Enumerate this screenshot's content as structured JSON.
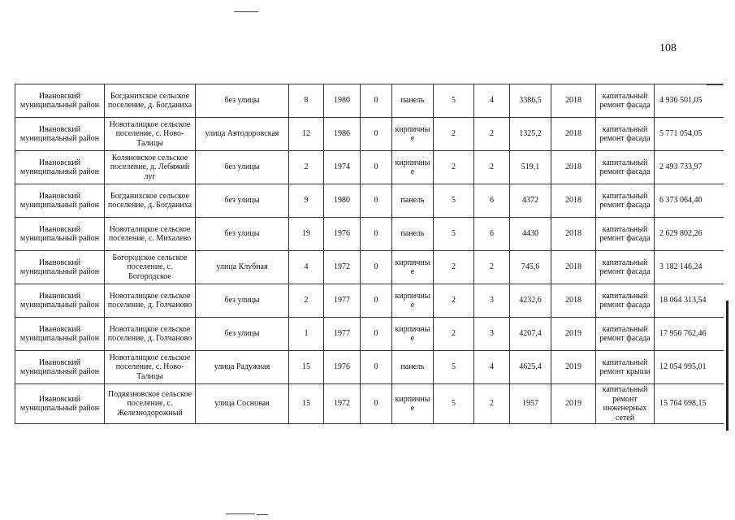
{
  "page_number": "108",
  "rows": [
    {
      "district": "Ивановский муниципальный район",
      "settlement": "Богданихское сельское поселение, д. Богданиха",
      "street": "без улицы",
      "house": "8",
      "year": "1980",
      "c6": "0",
      "material": "панель",
      "floors": "5",
      "entrances": "4",
      "area": "3386,5",
      "plan_year": "2018",
      "work": "капитальный ремонт фасада",
      "cost": "4 936 501,05"
    },
    {
      "district": "Ивановский муниципальный район",
      "settlement": "Новоталицкое сельское поселение, с. Ново-Талицы",
      "street": "улица Автодоровская",
      "house": "12",
      "year": "1986",
      "c6": "0",
      "material": "кирпичные",
      "floors": "2",
      "entrances": "2",
      "area": "1325,2",
      "plan_year": "2018",
      "work": "капитальный ремонт фасада",
      "cost": "5 771 054,05"
    },
    {
      "district": "Ивановский муниципальный район",
      "settlement": "Коляновское сельское поселение, д. Лебяжий луг",
      "street": "без улицы",
      "house": "2",
      "year": "1974",
      "c6": "0",
      "material": "кирпичные",
      "floors": "2",
      "entrances": "2",
      "area": "519,1",
      "plan_year": "2018",
      "work": "капитальный ремонт фасада",
      "cost": "2 493 733,97"
    },
    {
      "district": "Ивановский муниципальный район",
      "settlement": "Богданихское сельское поселение, д. Богданиха",
      "street": "без улицы",
      "house": "9",
      "year": "1980",
      "c6": "0",
      "material": "панель",
      "floors": "5",
      "entrances": "6",
      "area": "4372",
      "plan_year": "2018",
      "work": "капитальный ремонт фасада",
      "cost": "6 373 064,40"
    },
    {
      "district": "Ивановский муниципальный район",
      "settlement": "Новоталицкое сельское поселение, с. Михалево",
      "street": "без улицы",
      "house": "19",
      "year": "1976",
      "c6": "0",
      "material": "панель",
      "floors": "5",
      "entrances": "6",
      "area": "4430",
      "plan_year": "2018",
      "work": "капитальный ремонт фасада",
      "cost": "2 629 802,26"
    },
    {
      "district": "Ивановский муниципальный район",
      "settlement": "Богородское сельское поселение, с. Богородское",
      "street": "улица Клубная",
      "house": "4",
      "year": "1972",
      "c6": "0",
      "material": "кирпичные",
      "floors": "2",
      "entrances": "2",
      "area": "745,6",
      "plan_year": "2018",
      "work": "капитальный ремонт фасада",
      "cost": "3 182 146,24"
    },
    {
      "district": "Ивановский муниципальный район",
      "settlement": "Новоталицкое сельское поселение, д. Голчаново",
      "street": "без улицы",
      "house": "2",
      "year": "1977",
      "c6": "0",
      "material": "кирпичные",
      "floors": "2",
      "entrances": "3",
      "area": "4232,6",
      "plan_year": "2018",
      "work": "капитальный ремонт фасада",
      "cost": "18 064 313,54"
    },
    {
      "district": "Ивановский муниципальный район",
      "settlement": "Новоталицкое сельское поселение, д. Голчаново",
      "street": "без улицы",
      "house": "1",
      "year": "1977",
      "c6": "0",
      "material": "кирпичные",
      "floors": "2",
      "entrances": "3",
      "area": "4207,4",
      "plan_year": "2019",
      "work": "капитальный ремонт фасада",
      "cost": "17 956 762,46"
    },
    {
      "district": "Ивановский муниципальный район",
      "settlement": "Новоталицкое сельское поселение, с. Ново-Талицы",
      "street": "улица Радужная",
      "house": "15",
      "year": "1976",
      "c6": "0",
      "material": "панель",
      "floors": "5",
      "entrances": "4",
      "area": "4625,4",
      "plan_year": "2019",
      "work": "капитальный ремонт крыши",
      "cost": "12 054 995,01"
    },
    {
      "district": "Ивановский муниципальный район",
      "settlement": "Подвязновское сельское поселение, с. Железнодорожный",
      "street": "улица Сосновая",
      "house": "15",
      "year": "1972",
      "c6": "0",
      "material": "кирпичные",
      "floors": "5",
      "entrances": "2",
      "area": "1957",
      "plan_year": "2019",
      "work": "капитальный ремонт инженерных сетей",
      "cost": "15 764 698,15"
    }
  ]
}
